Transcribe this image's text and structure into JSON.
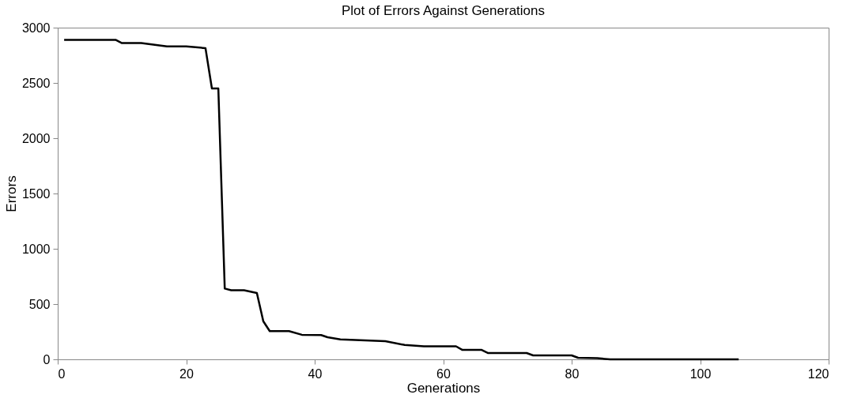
{
  "chart_data": {
    "type": "line",
    "title": "Plot of Errors Against Generations",
    "xlabel": "Generations",
    "ylabel": "Errors",
    "x": [
      1,
      9,
      10,
      13,
      17,
      20,
      23,
      24,
      25,
      26,
      27,
      29,
      31,
      32,
      33,
      36,
      38,
      41,
      42,
      44,
      51,
      54,
      57,
      62,
      63,
      66,
      67,
      73,
      74,
      80,
      81,
      84,
      86,
      106
    ],
    "series": [
      {
        "color": "#000000",
        "values": [
          2890,
          2890,
          2860,
          2860,
          2830,
          2830,
          2815,
          2450,
          2450,
          640,
          625,
          625,
          600,
          345,
          255,
          255,
          222,
          220,
          200,
          180,
          165,
          130,
          118,
          118,
          85,
          85,
          57,
          57,
          36,
          36,
          14,
          10,
          0,
          0
        ]
      }
    ],
    "xlim": [
      0,
      120
    ],
    "xticks": [
      0,
      20,
      40,
      60,
      80,
      100,
      120
    ],
    "ylim": [
      0,
      3000
    ],
    "yticks": [
      0,
      500,
      1000,
      1500,
      2000,
      2500,
      3000
    ],
    "grid": false,
    "legend": false,
    "marker": "none",
    "line_style": "solid"
  }
}
